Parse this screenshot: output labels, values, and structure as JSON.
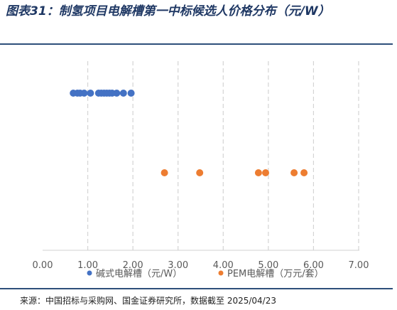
{
  "title": "图表31：制氢项目电解槽第一中标候选人价格分布（元/W）",
  "source": "来源：中国招标与采购网、国金证券研究所，数据截至 2025/04/23",
  "chart_data": {
    "type": "scatter",
    "title": "",
    "xlabel": "",
    "ylabel": "",
    "xlim": [
      0,
      7
    ],
    "x_ticks": [
      "0.00",
      "1.00",
      "2.00",
      "3.00",
      "4.00",
      "5.00",
      "6.00",
      "7.00"
    ],
    "grid": "vertical dashed",
    "legend_position": "bottom",
    "series": [
      {
        "name": "碱式电解槽（元/W）",
        "color": "#4472C4",
        "row": 1,
        "x": [
          0.68,
          0.77,
          0.83,
          0.92,
          1.06,
          1.24,
          1.3,
          1.36,
          1.42,
          1.48,
          1.54,
          1.64,
          1.79,
          1.96
        ]
      },
      {
        "name": "PEM电解槽（万元/套）",
        "color": "#ED7D31",
        "row": 2,
        "x": [
          2.7,
          3.48,
          4.78,
          4.94,
          5.57,
          5.79
        ]
      }
    ]
  }
}
